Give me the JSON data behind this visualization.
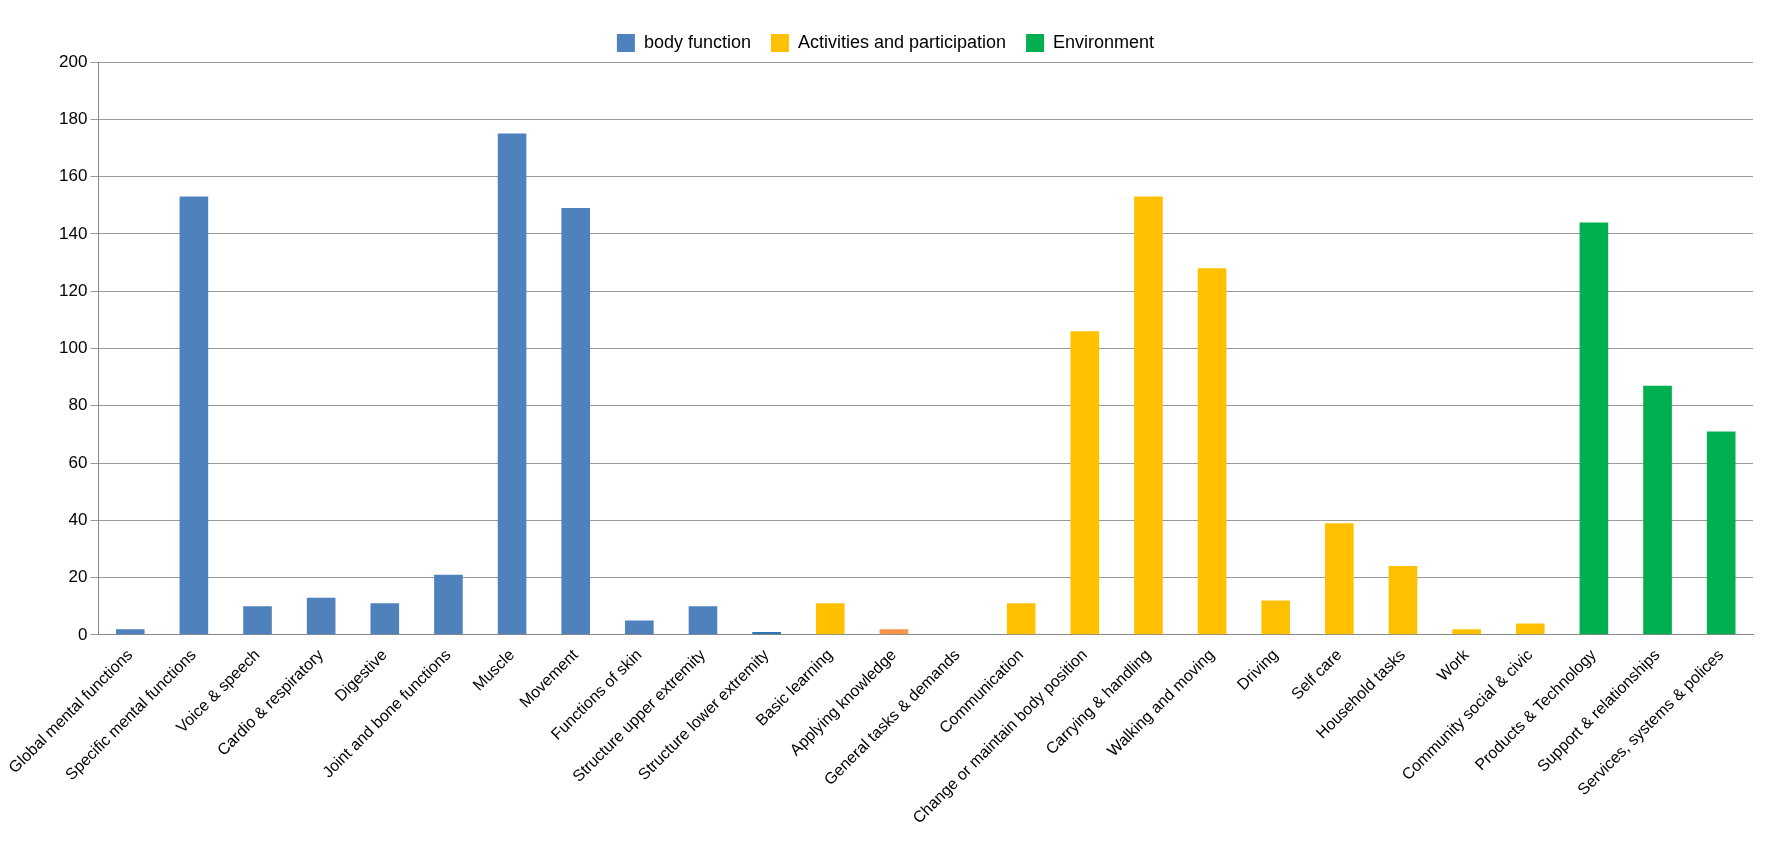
{
  "chart_data": {
    "type": "bar",
    "stacked": true,
    "grid": "y",
    "legend": "top",
    "categories": [
      "Global mental functions",
      "Specific mental functions",
      "Voice & speech",
      "Cardio & respiratory",
      "Digestive",
      "Joint and bone functions",
      "Muscle",
      "Movement",
      "Functions of skin",
      "Structure upper extremity",
      "Structure lower extremity",
      "Basic learning",
      "Applying knowledge",
      "General tasks & demands",
      "Communication",
      "Change or maintain body position",
      "Carrying & handling",
      "Walking and moving",
      "Driving",
      "Self care",
      "Household tasks",
      "Work",
      "Community social & civic",
      "Products & Technology",
      "Support & relationships",
      "Services, systems & polices"
    ],
    "series": [
      {
        "name": "body function",
        "color": "#4f81bd",
        "colors": [
          "#4f81bd",
          "#4f81bd",
          "#4f81bd",
          "#4f81bd",
          "#4f81bd",
          "#4f81bd",
          "#4f81bd",
          "#4f81bd",
          "#4f81bd",
          "#4f81bd",
          "#2e75b6",
          null,
          null,
          null,
          null,
          null,
          null,
          null,
          null,
          null,
          null,
          null,
          null,
          null,
          null,
          null
        ],
        "values": [
          2,
          153,
          10,
          13,
          11,
          21,
          175,
          149,
          5,
          10,
          1,
          null,
          null,
          null,
          null,
          null,
          null,
          null,
          null,
          null,
          null,
          null,
          null,
          null,
          null,
          null
        ]
      },
      {
        "name": "Activities and participation",
        "color": "#ffc000",
        "colors": [
          null,
          null,
          null,
          null,
          null,
          null,
          null,
          null,
          null,
          null,
          null,
          "#ffc000",
          "#f79646",
          "#ffc000",
          "#ffc000",
          "#ffc000",
          "#ffc000",
          "#ffc000",
          "#ffc000",
          "#ffc000",
          "#ffc000",
          "#ffc000",
          "#ffc000",
          null,
          null,
          null
        ],
        "values": [
          null,
          null,
          null,
          null,
          null,
          null,
          null,
          null,
          null,
          null,
          null,
          11,
          2,
          0,
          11,
          106,
          153,
          128,
          12,
          39,
          24,
          2,
          4,
          null,
          null,
          null
        ]
      },
      {
        "name": "Environment",
        "color": "#00b050",
        "colors": [
          null,
          null,
          null,
          null,
          null,
          null,
          null,
          null,
          null,
          null,
          null,
          null,
          null,
          null,
          null,
          null,
          null,
          null,
          null,
          null,
          null,
          null,
          null,
          "#00b050",
          "#00b050",
          "#00b050"
        ],
        "values": [
          null,
          null,
          null,
          null,
          null,
          null,
          null,
          null,
          null,
          null,
          null,
          null,
          null,
          null,
          null,
          null,
          null,
          null,
          null,
          null,
          null,
          null,
          null,
          144,
          87,
          71
        ]
      }
    ],
    "ylim": [
      0,
      200
    ],
    "yticks": [
      0,
      20,
      40,
      60,
      80,
      100,
      120,
      140,
      160,
      180,
      200
    ]
  }
}
